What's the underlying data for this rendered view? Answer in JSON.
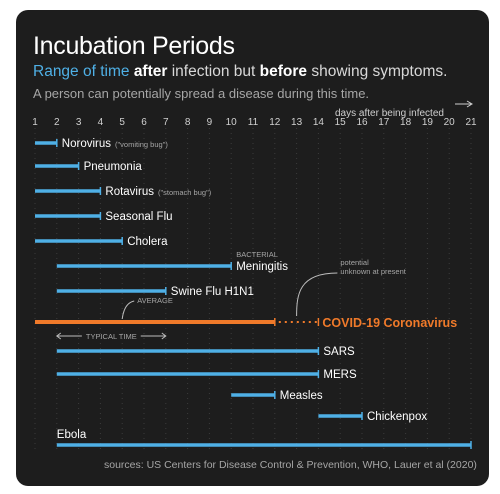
{
  "header": {
    "title": "Incubation Periods",
    "subtitle_parts": [
      "Range of time",
      "after",
      "infection but",
      "before",
      "showing symptoms."
    ],
    "note": "A person can potentially spread a disease during this time."
  },
  "source": "sources: US Centers for Disease Control & Prevention, WHO, Lauer et al (2020)",
  "colors": {
    "background": "#1d1d1d",
    "bar": "#4fb0e6",
    "highlight": "#f07a2a",
    "text": "#ffffff",
    "muted": "#a6a6a6"
  },
  "chart_data": {
    "type": "bar",
    "orientation": "horizontal-range",
    "xlabel": "days after being infected",
    "xlim": [
      1,
      21
    ],
    "xticks": [
      1,
      2,
      3,
      4,
      5,
      6,
      7,
      8,
      9,
      10,
      11,
      12,
      13,
      14,
      15,
      16,
      17,
      18,
      19,
      20,
      21
    ],
    "grid": true,
    "series": [
      {
        "name": "Norovirus",
        "note": "(\"vomiting bug\")",
        "start": 1,
        "end": 2
      },
      {
        "name": "Pneumonia",
        "start": 1,
        "end": 3
      },
      {
        "name": "Rotavirus",
        "note": "(\"stomach bug\")",
        "start": 1,
        "end": 4
      },
      {
        "name": "Seasonal Flu",
        "start": 1,
        "end": 4
      },
      {
        "name": "Cholera",
        "start": 1,
        "end": 5
      },
      {
        "name": "Meningitis",
        "label_above": "BACTERIAL",
        "start": 2,
        "end": 10
      },
      {
        "name": "Swine Flu H1N1",
        "start": 2,
        "end": 7
      },
      {
        "name": "COVID-19 Coronavirus",
        "start": 1,
        "end": 12,
        "potential_end": 14,
        "highlight": true
      },
      {
        "name": "SARS",
        "start": 2,
        "end": 14
      },
      {
        "name": "MERS",
        "start": 2,
        "end": 14
      },
      {
        "name": "Measles",
        "start": 10,
        "end": 12
      },
      {
        "name": "Chickenpox",
        "start": 14,
        "end": 16
      },
      {
        "name": "Ebola",
        "start": 2,
        "end": 21,
        "label_left": true
      }
    ],
    "annotations": {
      "average": {
        "text": "AVERAGE",
        "day": 5
      },
      "typical": {
        "text": "TYPICAL TIME",
        "range": [
          2,
          7
        ]
      },
      "potential": {
        "text": [
          "potential",
          "unknown at present"
        ]
      }
    }
  }
}
